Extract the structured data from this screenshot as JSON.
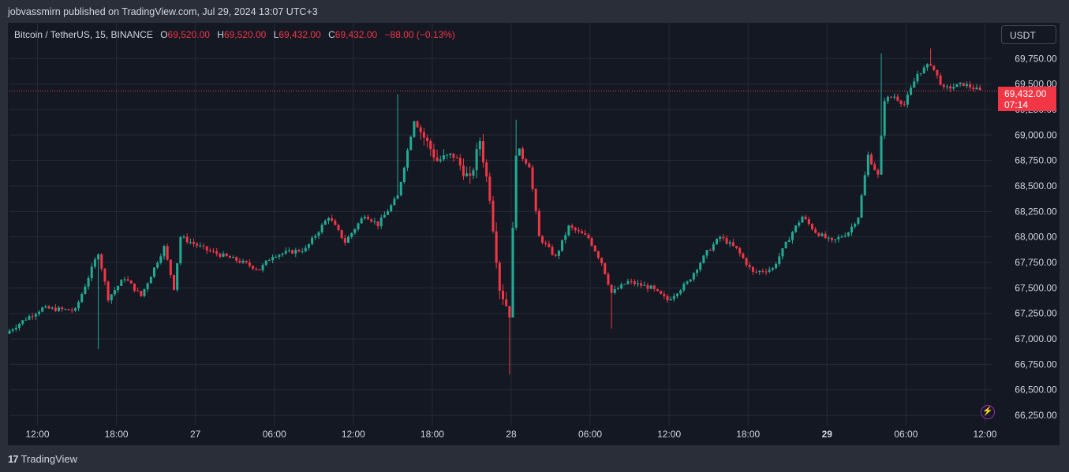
{
  "header": {
    "text": "jobvassmirn published on TradingView.com, Jul 29, 2024 13:07 UTC+3"
  },
  "legend": {
    "symbol": "Bitcoin / TetherUS, 15, BINANCE",
    "o_label": "O",
    "o_value": "69,520.00",
    "h_label": "H",
    "h_value": "69,520.00",
    "l_label": "L",
    "l_value": "69,432.00",
    "c_label": "C",
    "c_value": "69,432.00",
    "change": "−88.00 (−0.13%)"
  },
  "currency_button": "USDT",
  "last_price": {
    "price": "69,432.00",
    "countdown": "07:14"
  },
  "footer": {
    "brand": "TradingView",
    "logo_mark": "17"
  },
  "colors": {
    "up": "#22ab94",
    "down": "#f23645",
    "background": "#141823",
    "grid": "#262a35",
    "text": "#d1d4dc"
  },
  "icons": {
    "lightning": "lightning-icon"
  },
  "chart_data": {
    "type": "candlestick",
    "title": "Bitcoin / TetherUS, 15, BINANCE",
    "ylim": [
      66150,
      70100
    ],
    "y_ticks": [
      {
        "value": 69750,
        "label": "69,750.00"
      },
      {
        "value": 69500,
        "label": "69,500.00"
      },
      {
        "value": 69250,
        "label": "69,250.00"
      },
      {
        "value": 69000,
        "label": "69,000.00"
      },
      {
        "value": 68750,
        "label": "68,750.00"
      },
      {
        "value": 68500,
        "label": "68,500.00"
      },
      {
        "value": 68250,
        "label": "68,250.00"
      },
      {
        "value": 68000,
        "label": "68,000.00"
      },
      {
        "value": 67750,
        "label": "67,750.00"
      },
      {
        "value": 67500,
        "label": "67,500.00"
      },
      {
        "value": 67250,
        "label": "67,250.00"
      },
      {
        "value": 67000,
        "label": "67,000.00"
      },
      {
        "value": 66750,
        "label": "66,750.00"
      },
      {
        "value": 66500,
        "label": "66,500.00"
      },
      {
        "value": 66250,
        "label": "66,250.00"
      }
    ],
    "x_ticks": [
      {
        "index": 3,
        "label": "12:00",
        "bold": false
      },
      {
        "index": 27,
        "label": "18:00",
        "bold": false
      },
      {
        "index": 51,
        "label": "27",
        "bold": false
      },
      {
        "index": 75,
        "label": "06:00",
        "bold": false
      },
      {
        "index": 99,
        "label": "12:00",
        "bold": false
      },
      {
        "index": 123,
        "label": "18:00",
        "bold": false
      },
      {
        "index": 147,
        "label": "28",
        "bold": false
      },
      {
        "index": 171,
        "label": "06:00",
        "bold": false
      },
      {
        "index": 195,
        "label": "12:00",
        "bold": false
      },
      {
        "index": 219,
        "label": "18:00",
        "bold": false
      },
      {
        "index": 243,
        "label": "29",
        "bold": true
      },
      {
        "index": 267,
        "label": "06:00",
        "bold": false
      },
      {
        "index": 291,
        "label": "12:00",
        "bold": false
      }
    ],
    "last_price": 69432,
    "key_points": [
      [
        0,
        67080
      ],
      [
        5,
        67200
      ],
      [
        10,
        67300
      ],
      [
        20,
        67280
      ],
      [
        27,
        67850
      ],
      [
        30,
        67400
      ],
      [
        35,
        67600
      ],
      [
        40,
        67420
      ],
      [
        47,
        67900
      ],
      [
        50,
        67500
      ],
      [
        52,
        68000
      ],
      [
        60,
        67870
      ],
      [
        70,
        67760
      ],
      [
        76,
        67680
      ],
      [
        80,
        67820
      ],
      [
        90,
        67880
      ],
      [
        97,
        68200
      ],
      [
        102,
        67950
      ],
      [
        108,
        68220
      ],
      [
        112,
        68120
      ],
      [
        118,
        68400
      ],
      [
        123,
        69150
      ],
      [
        130,
        68750
      ],
      [
        135,
        68800
      ],
      [
        140,
        68550
      ],
      [
        143,
        68950
      ],
      [
        146,
        68400
      ],
      [
        149,
        67500
      ],
      [
        152,
        67250
      ],
      [
        154,
        68850
      ],
      [
        158,
        68700
      ],
      [
        161,
        68000
      ],
      [
        166,
        67800
      ],
      [
        170,
        68100
      ],
      [
        176,
        67990
      ],
      [
        180,
        67750
      ],
      [
        183,
        67450
      ],
      [
        188,
        67560
      ],
      [
        195,
        67500
      ],
      [
        200,
        67380
      ],
      [
        206,
        67550
      ],
      [
        212,
        67850
      ],
      [
        216,
        68000
      ],
      [
        221,
        67880
      ],
      [
        226,
        67650
      ],
      [
        232,
        67690
      ],
      [
        238,
        68050
      ],
      [
        241,
        68200
      ],
      [
        245,
        68050
      ],
      [
        250,
        67950
      ],
      [
        255,
        68050
      ],
      [
        258,
        68200
      ],
      [
        261,
        68800
      ],
      [
        264,
        68600
      ],
      [
        266,
        69350
      ],
      [
        269,
        69380
      ],
      [
        272,
        69300
      ],
      [
        276,
        69600
      ],
      [
        280,
        69700
      ],
      [
        284,
        69450
      ],
      [
        290,
        69500
      ],
      [
        295,
        69432
      ]
    ],
    "volatile_ranges": [
      [
        125,
        155
      ]
    ],
    "wicks": [
      [
        27,
        66900,
        "low"
      ],
      [
        118,
        69400,
        "high"
      ],
      [
        152,
        66650,
        "low"
      ],
      [
        154,
        69150,
        "high"
      ],
      [
        183,
        67100,
        "low"
      ],
      [
        265,
        69800,
        "high"
      ],
      [
        280,
        69850,
        "high"
      ]
    ]
  }
}
